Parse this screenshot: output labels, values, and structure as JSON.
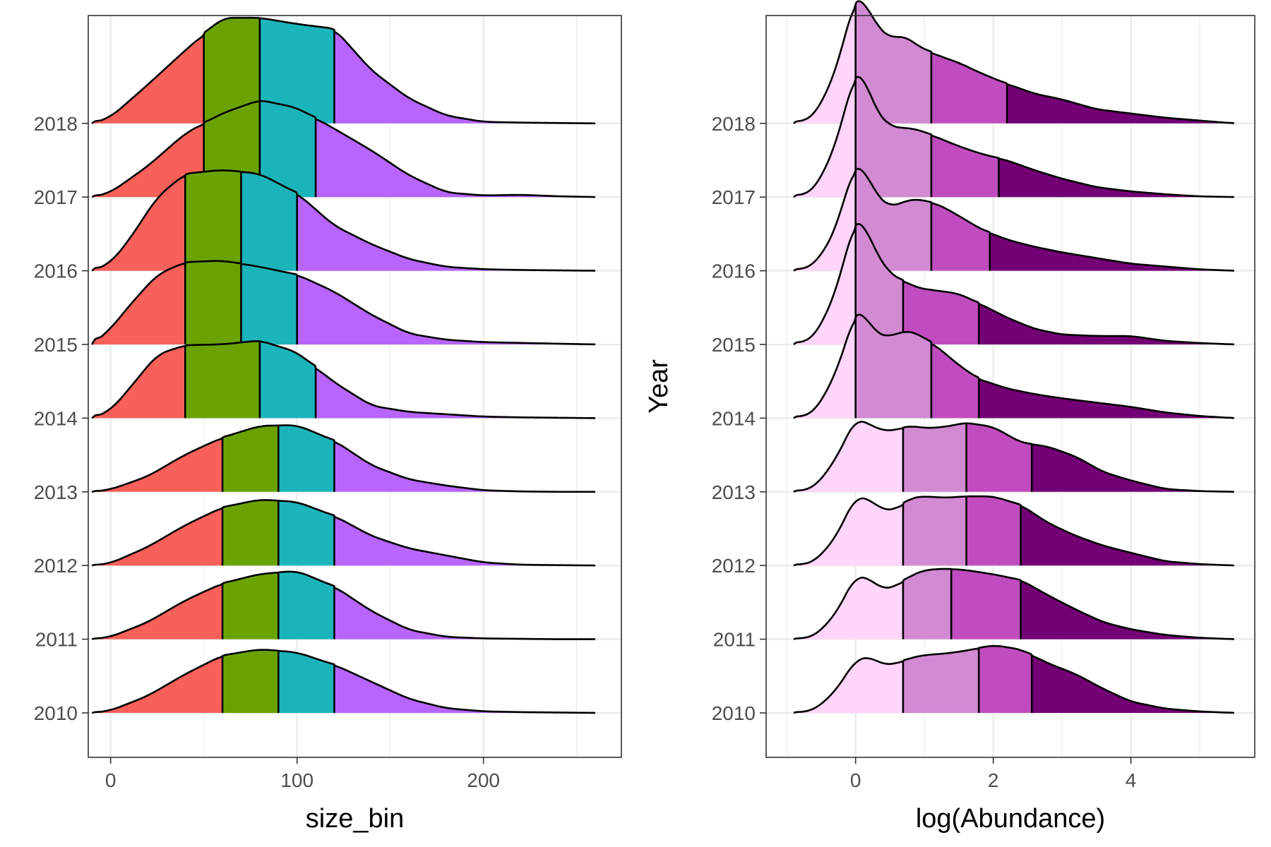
{
  "chart_data": [
    {
      "type": "ridgeline",
      "xlabel": "size_bin",
      "ylabel": "",
      "xlim": [
        -12,
        274
      ],
      "xticks": [
        0,
        100,
        200
      ],
      "x_range": [
        -10,
        260
      ],
      "grid": true,
      "legend": "none",
      "quantiles_fill": [
        "#f8615a",
        "#6aa300",
        "#1cb4bb",
        "#b765fc"
      ],
      "categories": [
        "2010",
        "2011",
        "2012",
        "2013",
        "2014",
        "2015",
        "2016",
        "2017",
        "2018"
      ],
      "ridges": [
        {
          "year": "2010",
          "quantile_cuts": [
            60,
            90,
            120
          ],
          "x": [
            -10,
            0,
            20,
            40,
            60,
            80,
            100,
            120,
            140,
            160,
            180,
            200,
            220,
            240,
            260
          ],
          "density": [
            0.0,
            0.03,
            0.22,
            0.5,
            0.74,
            0.82,
            0.78,
            0.62,
            0.4,
            0.18,
            0.06,
            0.02,
            0.01,
            0.005,
            0.0
          ]
        },
        {
          "year": "2011",
          "quantile_cuts": [
            60,
            90,
            120
          ],
          "x": [
            -10,
            0,
            20,
            40,
            60,
            80,
            100,
            120,
            140,
            160,
            180,
            200,
            220,
            240,
            260
          ],
          "density": [
            0.0,
            0.03,
            0.22,
            0.5,
            0.72,
            0.84,
            0.88,
            0.68,
            0.36,
            0.12,
            0.03,
            0.01,
            0.005,
            0.0,
            0.0
          ]
        },
        {
          "year": "2012",
          "quantile_cuts": [
            60,
            90,
            120
          ],
          "x": [
            -10,
            0,
            20,
            40,
            60,
            80,
            100,
            120,
            140,
            160,
            180,
            200,
            220,
            240,
            260
          ],
          "density": [
            0.0,
            0.03,
            0.24,
            0.52,
            0.75,
            0.85,
            0.82,
            0.64,
            0.38,
            0.22,
            0.13,
            0.04,
            0.01,
            0.005,
            0.0
          ]
        },
        {
          "year": "2013",
          "quantile_cuts": [
            60,
            90,
            120
          ],
          "x": [
            -10,
            0,
            20,
            40,
            60,
            80,
            100,
            120,
            140,
            160,
            180,
            200,
            220,
            240,
            260
          ],
          "density": [
            0.0,
            0.03,
            0.2,
            0.48,
            0.7,
            0.85,
            0.86,
            0.66,
            0.34,
            0.16,
            0.08,
            0.02,
            0.005,
            0.0,
            0.0
          ]
        },
        {
          "year": "2014",
          "quantile_cuts": [
            40,
            80,
            110
          ],
          "x": [
            -10,
            0,
            10,
            25,
            40,
            60,
            80,
            100,
            120,
            140,
            160,
            180,
            200,
            220,
            240,
            260
          ],
          "density": [
            0.0,
            0.1,
            0.38,
            0.82,
            0.94,
            0.95,
            1.0,
            0.85,
            0.46,
            0.16,
            0.08,
            0.05,
            0.02,
            0.01,
            0.005,
            0.0
          ]
        },
        {
          "year": "2015",
          "quantile_cuts": [
            40,
            70,
            100
          ],
          "x": [
            -10,
            0,
            10,
            25,
            40,
            60,
            80,
            100,
            120,
            140,
            160,
            180,
            200,
            220,
            240,
            260
          ],
          "density": [
            0.0,
            0.2,
            0.5,
            0.9,
            1.06,
            1.08,
            1.0,
            0.9,
            0.68,
            0.38,
            0.14,
            0.06,
            0.03,
            0.02,
            0.01,
            0.0
          ]
        },
        {
          "year": "2016",
          "quantile_cuts": [
            40,
            70,
            100
          ],
          "x": [
            -10,
            0,
            10,
            25,
            40,
            60,
            80,
            100,
            120,
            140,
            160,
            180,
            200,
            220,
            240,
            260
          ],
          "density": [
            0.0,
            0.1,
            0.4,
            0.95,
            1.25,
            1.3,
            1.25,
            1.0,
            0.58,
            0.34,
            0.15,
            0.05,
            0.02,
            0.01,
            0.005,
            0.0
          ]
        },
        {
          "year": "2017",
          "quantile_cuts": [
            50,
            80,
            110
          ],
          "x": [
            -10,
            0,
            20,
            40,
            60,
            80,
            100,
            120,
            140,
            160,
            180,
            200,
            220,
            240,
            260
          ],
          "density": [
            0.0,
            0.06,
            0.4,
            0.82,
            1.08,
            1.25,
            1.15,
            0.88,
            0.6,
            0.28,
            0.06,
            0.02,
            0.03,
            0.01,
            0.0
          ]
        },
        {
          "year": "2018",
          "quantile_cuts": [
            50,
            80,
            120
          ],
          "x": [
            -10,
            0,
            20,
            40,
            60,
            80,
            100,
            120,
            140,
            160,
            180,
            200,
            220,
            240,
            260
          ],
          "density": [
            0.0,
            0.08,
            0.5,
            0.94,
            1.36,
            1.36,
            1.28,
            1.22,
            0.68,
            0.32,
            0.1,
            0.02,
            0.01,
            0.005,
            0.0
          ]
        }
      ]
    },
    {
      "type": "ridgeline",
      "xlabel": "log(Abundance)",
      "ylabel": "Year",
      "xlim": [
        -1.3,
        5.8
      ],
      "xticks": [
        0,
        2,
        4
      ],
      "x_range": [
        -0.9,
        5.5
      ],
      "grid": true,
      "legend": "none",
      "quantiles_fill": [
        "#ffd5fa",
        "#d28ad3",
        "#c14cbf",
        "#730075"
      ],
      "categories": [
        "2010",
        "2011",
        "2012",
        "2013",
        "2014",
        "2015",
        "2016",
        "2017",
        "2018"
      ],
      "ridges": [
        {
          "year": "2010",
          "quantile_cuts": [
            0.69,
            1.79,
            2.56
          ],
          "x": [
            -0.9,
            -0.6,
            -0.3,
            0.0,
            0.2,
            0.4,
            0.6,
            0.8,
            1.0,
            1.3,
            1.6,
            2.0,
            2.4,
            2.8,
            3.2,
            3.6,
            4.0,
            4.5,
            5.0,
            5.5
          ],
          "density": [
            0.0,
            0.04,
            0.3,
            0.75,
            0.8,
            0.68,
            0.7,
            0.78,
            0.82,
            0.84,
            0.88,
            0.96,
            0.9,
            0.7,
            0.55,
            0.34,
            0.16,
            0.06,
            0.02,
            0.0
          ]
        },
        {
          "year": "2011",
          "quantile_cuts": [
            0.69,
            1.39,
            2.4
          ],
          "x": [
            -0.9,
            -0.6,
            -0.3,
            0.0,
            0.2,
            0.4,
            0.6,
            0.8,
            1.0,
            1.3,
            1.6,
            2.0,
            2.4,
            2.8,
            3.2,
            3.6,
            4.0,
            4.5,
            5.0,
            5.5
          ],
          "density": [
            0.0,
            0.04,
            0.34,
            0.9,
            0.86,
            0.7,
            0.76,
            0.9,
            0.98,
            1.0,
            0.98,
            0.92,
            0.84,
            0.62,
            0.42,
            0.24,
            0.14,
            0.06,
            0.02,
            0.0
          ]
        },
        {
          "year": "2012",
          "quantile_cuts": [
            0.69,
            1.61,
            2.4
          ],
          "x": [
            -0.9,
            -0.6,
            -0.3,
            0.0,
            0.2,
            0.4,
            0.6,
            0.8,
            1.0,
            1.3,
            1.6,
            2.0,
            2.4,
            2.8,
            3.2,
            3.6,
            4.0,
            4.5,
            5.0,
            5.5
          ],
          "density": [
            0.0,
            0.05,
            0.38,
            0.98,
            0.94,
            0.78,
            0.8,
            0.96,
            0.98,
            0.96,
            0.98,
            0.98,
            0.86,
            0.6,
            0.42,
            0.28,
            0.18,
            0.06,
            0.02,
            0.0
          ]
        },
        {
          "year": "2013",
          "quantile_cuts": [
            0.69,
            1.61,
            2.56
          ],
          "x": [
            -0.9,
            -0.6,
            -0.3,
            0.0,
            0.2,
            0.4,
            0.6,
            0.8,
            1.0,
            1.3,
            1.6,
            2.0,
            2.4,
            2.8,
            3.2,
            3.6,
            4.0,
            4.5,
            5.0,
            5.5
          ],
          "density": [
            0.0,
            0.06,
            0.44,
            1.04,
            0.96,
            0.86,
            0.88,
            0.94,
            0.9,
            0.92,
            0.98,
            0.92,
            0.7,
            0.64,
            0.5,
            0.28,
            0.16,
            0.04,
            0.01,
            0.0
          ]
        },
        {
          "year": "2014",
          "quantile_cuts": [
            0.0,
            1.1,
            1.79
          ],
          "x": [
            -0.9,
            -0.6,
            -0.3,
            -0.1,
            0.0,
            0.1,
            0.3,
            0.5,
            0.7,
            0.9,
            1.2,
            1.5,
            1.8,
            2.2,
            2.6,
            3.0,
            3.5,
            4.0,
            4.5,
            5.0,
            5.5
          ],
          "density": [
            0.0,
            0.08,
            0.6,
            1.2,
            1.5,
            1.5,
            1.2,
            1.15,
            1.24,
            1.2,
            1.0,
            0.75,
            0.55,
            0.42,
            0.34,
            0.28,
            0.22,
            0.16,
            0.08,
            0.03,
            0.0
          ]
        },
        {
          "year": "2015",
          "quantile_cuts": [
            0.0,
            0.69,
            1.79
          ],
          "x": [
            -0.9,
            -0.6,
            -0.3,
            -0.1,
            0.0,
            0.1,
            0.3,
            0.5,
            0.7,
            0.9,
            1.2,
            1.5,
            1.8,
            2.2,
            2.6,
            3.0,
            3.5,
            4.0,
            4.5,
            5.0,
            5.5
          ],
          "density": [
            0.0,
            0.1,
            0.7,
            1.45,
            1.75,
            1.75,
            1.3,
            1.0,
            0.9,
            0.8,
            0.76,
            0.72,
            0.58,
            0.38,
            0.22,
            0.14,
            0.12,
            0.12,
            0.05,
            0.02,
            0.0
          ]
        },
        {
          "year": "2016",
          "quantile_cuts": [
            0.0,
            1.1,
            1.95
          ],
          "x": [
            -0.9,
            -0.6,
            -0.3,
            -0.1,
            0.0,
            0.1,
            0.3,
            0.5,
            0.7,
            0.9,
            1.2,
            1.5,
            1.8,
            2.2,
            2.6,
            3.0,
            3.5,
            4.0,
            4.5,
            5.0,
            5.5
          ],
          "density": [
            0.0,
            0.08,
            0.55,
            1.25,
            1.48,
            1.48,
            1.08,
            0.9,
            0.98,
            1.02,
            0.94,
            0.78,
            0.6,
            0.44,
            0.34,
            0.26,
            0.18,
            0.1,
            0.06,
            0.02,
            0.0
          ]
        },
        {
          "year": "2017",
          "quantile_cuts": [
            0.0,
            1.1,
            2.08
          ],
          "x": [
            -0.9,
            -0.6,
            -0.3,
            -0.1,
            0.0,
            0.1,
            0.3,
            0.5,
            0.7,
            0.9,
            1.2,
            1.5,
            1.8,
            2.2,
            2.6,
            3.0,
            3.5,
            4.0,
            4.5,
            5.0,
            5.5
          ],
          "density": [
            0.0,
            0.1,
            0.7,
            1.45,
            1.75,
            1.75,
            1.22,
            1.0,
            0.98,
            0.96,
            0.84,
            0.72,
            0.62,
            0.52,
            0.38,
            0.26,
            0.14,
            0.08,
            0.04,
            0.01,
            0.0
          ]
        },
        {
          "year": "2018",
          "quantile_cuts": [
            0.0,
            1.1,
            2.2
          ],
          "x": [
            -0.9,
            -0.6,
            -0.3,
            -0.1,
            0.0,
            0.1,
            0.3,
            0.5,
            0.7,
            0.9,
            1.2,
            1.5,
            1.8,
            2.2,
            2.6,
            3.0,
            3.5,
            4.0,
            4.5,
            5.0,
            5.5
          ],
          "density": [
            0.0,
            0.1,
            0.7,
            1.45,
            1.77,
            1.77,
            1.4,
            1.2,
            1.25,
            1.1,
            0.96,
            0.86,
            0.72,
            0.56,
            0.42,
            0.34,
            0.2,
            0.14,
            0.08,
            0.04,
            0.0
          ]
        }
      ]
    }
  ]
}
